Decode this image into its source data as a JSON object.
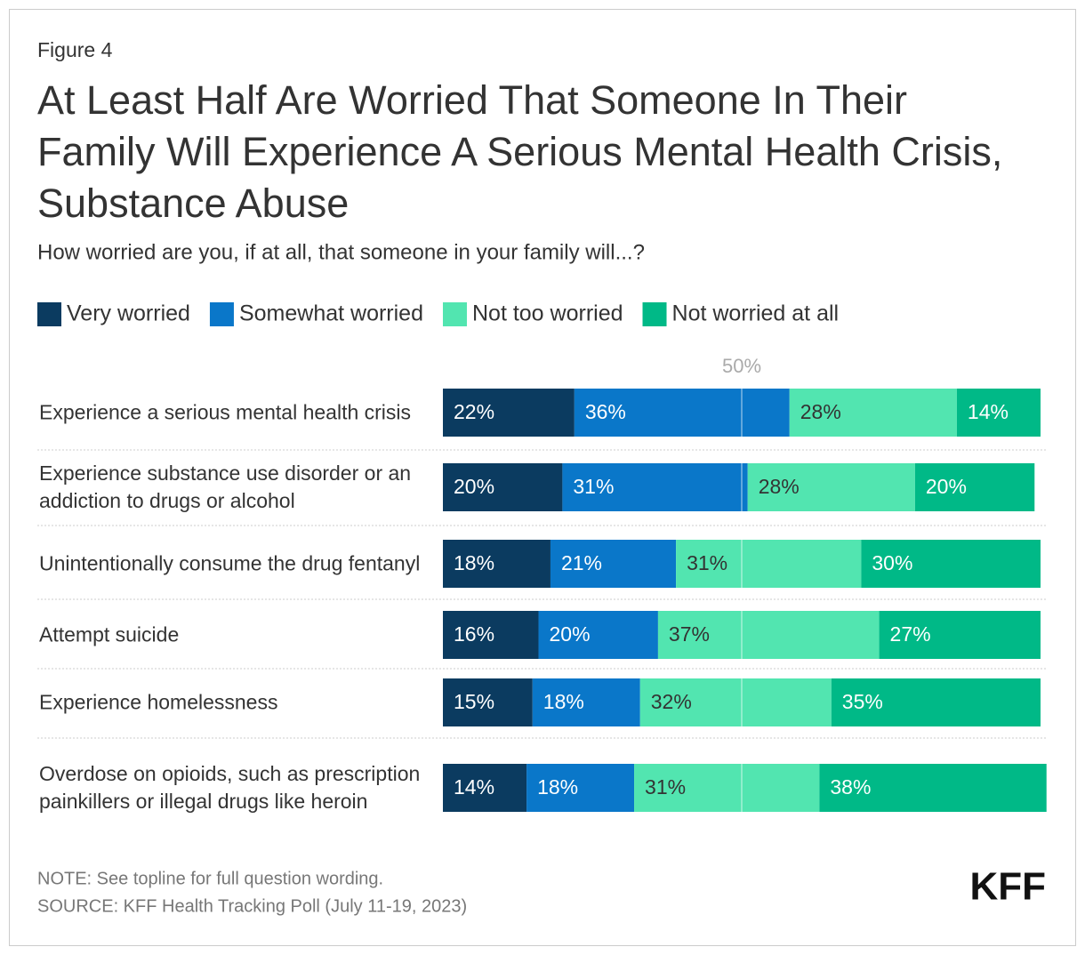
{
  "figure_label": "Figure 4",
  "chart_data": {
    "type": "stacked-bar-horizontal",
    "title": "At Least Half Are Worried That Someone In Their Family Will Experience A Serious Mental Health Crisis, Substance Abuse",
    "subtitle": "How worried are you, if at all, that someone in your family will...?",
    "categories": [
      "Experience a serious mental health crisis",
      "Experience substance use disorder or an addiction to drugs or alcohol",
      "Unintentionally consume the drug fentanyl",
      "Attempt suicide",
      "Experience homelessness",
      "Overdose on opioids, such as prescription painkillers or illegal drugs like heroin"
    ],
    "series": [
      {
        "name": "Very worried",
        "color": "#0b3b60",
        "label_color": "#ffffff",
        "values": [
          22,
          20,
          18,
          16,
          15,
          14
        ],
        "value_labels": [
          "22%",
          "20%",
          "18%",
          "16%",
          "15%",
          "14%"
        ]
      },
      {
        "name": "Somewhat worried",
        "color": "#0a77c9",
        "label_color": "#ffffff",
        "values": [
          36,
          31,
          21,
          20,
          18,
          18
        ],
        "value_labels": [
          "36%",
          "31%",
          "21%",
          "20%",
          "18%",
          "18%"
        ]
      },
      {
        "name": "Not too worried",
        "color": "#52e5b0",
        "label_color": "#333333",
        "values": [
          28,
          28,
          31,
          37,
          32,
          31
        ],
        "value_labels": [
          "28%",
          "28%",
          "31%",
          "37%",
          "32%",
          "31%"
        ]
      },
      {
        "name": "Not worried at all",
        "color": "#00b987",
        "label_color": "#ffffff",
        "values": [
          14,
          20,
          30,
          27,
          35,
          38
        ],
        "value_labels": [
          "14%",
          "20%",
          "30%",
          "27%",
          "35%",
          "38%"
        ]
      }
    ],
    "xlim": [
      0,
      100
    ],
    "reference_line": {
      "value": 50,
      "label": "50%"
    },
    "legend": "top-left"
  },
  "footer": {
    "note": "NOTE: See topline for full question wording.",
    "source": "SOURCE: KFF Health Tracking Poll (July 11-19, 2023)",
    "logo": "KFF"
  }
}
